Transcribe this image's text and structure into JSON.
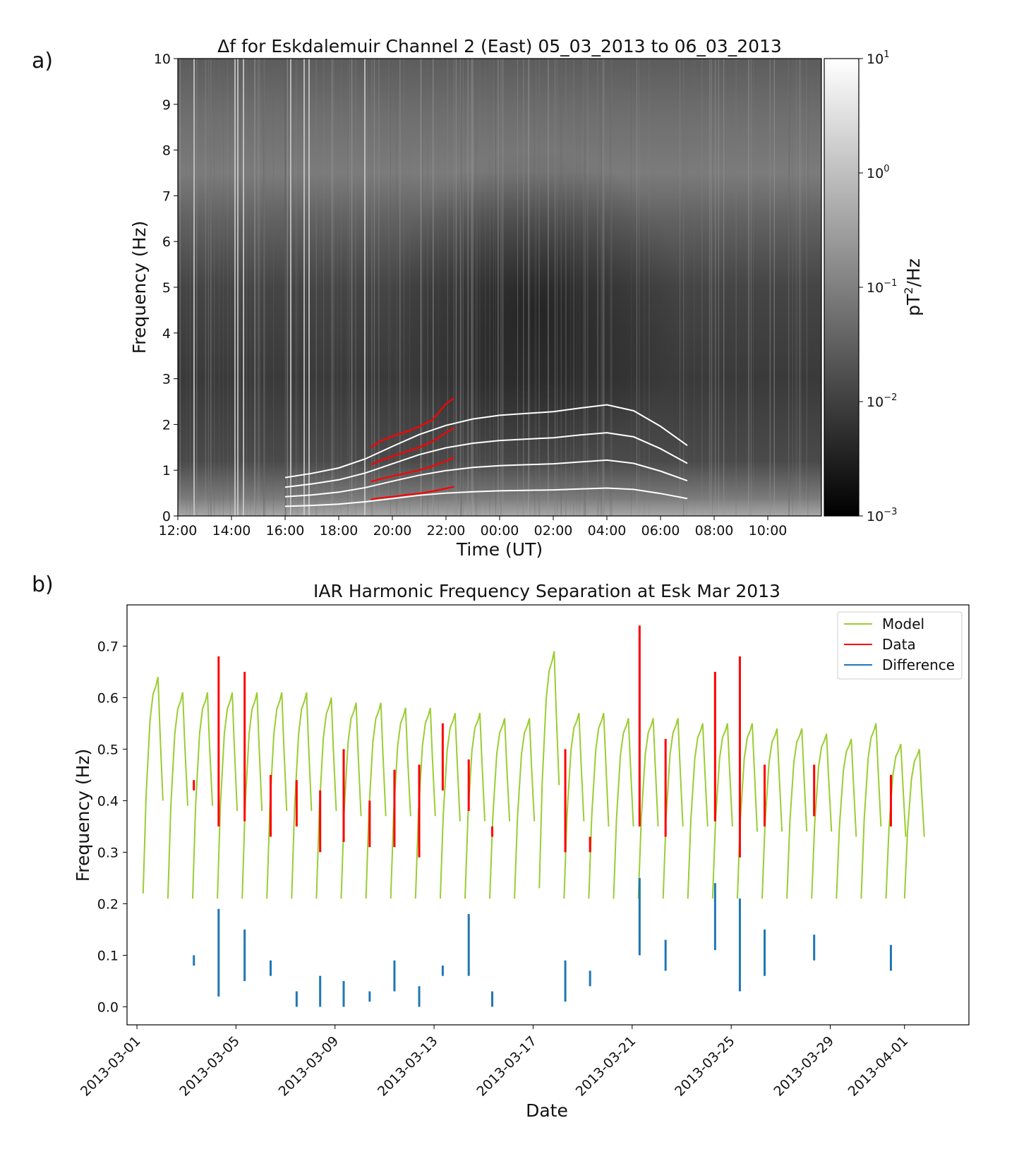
{
  "chart_data": [
    {
      "panel": "a)",
      "type": "heatmap",
      "title": "Δf for Eskdalemuir Channel 2 (East) 05_03_2013 to 06_03_2013",
      "xlabel": "Time (UT)",
      "ylabel": "Frequency (Hz)",
      "xlim": [
        12,
        36
      ],
      "ylim": [
        0,
        10
      ],
      "x_ticks": [
        {
          "value": 12,
          "label": "12:00"
        },
        {
          "value": 14,
          "label": "14:00"
        },
        {
          "value": 16,
          "label": "16:00"
        },
        {
          "value": 18,
          "label": "18:00"
        },
        {
          "value": 20,
          "label": "20:00"
        },
        {
          "value": 22,
          "label": "22:00"
        },
        {
          "value": 24,
          "label": "00:00"
        },
        {
          "value": 26,
          "label": "02:00"
        },
        {
          "value": 28,
          "label": "04:00"
        },
        {
          "value": 30,
          "label": "06:00"
        },
        {
          "value": 32,
          "label": "08:00"
        },
        {
          "value": 34,
          "label": "10:00"
        }
      ],
      "y_ticks": [
        0,
        1,
        2,
        3,
        4,
        5,
        6,
        7,
        8,
        9,
        10
      ],
      "colorbar": {
        "label": "pT²/Hz",
        "scale": "log",
        "range": [
          0.001,
          10
        ],
        "ticks": [
          {
            "value": -3,
            "base": "10",
            "exp": "−3"
          },
          {
            "value": -2,
            "base": "10",
            "exp": "−2"
          },
          {
            "value": -1,
            "base": "10",
            "exp": "−1"
          },
          {
            "value": 0,
            "base": "10",
            "exp": "0"
          },
          {
            "value": 1,
            "base": "10",
            "exp": "1"
          }
        ],
        "colormap": "gray"
      },
      "model_lines": {
        "color": "#ffffff",
        "x": [
          16,
          17,
          18,
          19,
          20,
          21,
          22,
          23,
          24,
          25,
          26,
          27,
          28,
          29,
          30,
          31
        ],
        "series": [
          {
            "values": [
              0.21,
              0.23,
              0.26,
              0.31,
              0.38,
              0.45,
              0.5,
              0.53,
              0.55,
              0.56,
              0.57,
              0.59,
              0.61,
              0.58,
              0.49,
              0.38
            ]
          },
          {
            "values": [
              0.42,
              0.46,
              0.52,
              0.62,
              0.76,
              0.89,
              0.99,
              1.06,
              1.1,
              1.12,
              1.14,
              1.18,
              1.22,
              1.15,
              0.98,
              0.77
            ]
          },
          {
            "values": [
              0.63,
              0.7,
              0.79,
              0.94,
              1.14,
              1.34,
              1.49,
              1.59,
              1.65,
              1.68,
              1.71,
              1.77,
              1.82,
              1.73,
              1.47,
              1.15
            ]
          },
          {
            "values": [
              0.84,
              0.93,
              1.05,
              1.25,
              1.52,
              1.78,
              1.98,
              2.12,
              2.2,
              2.24,
              2.28,
              2.36,
              2.43,
              2.3,
              1.96,
              1.54
            ]
          }
        ]
      },
      "data_lines": {
        "color": "#ff0000",
        "x": [
          19.2,
          19.5,
          20.0,
          20.5,
          21.0,
          21.5,
          22.0,
          22.3
        ],
        "series": [
          {
            "values": [
              0.36,
              0.39,
              0.42,
              0.46,
              0.49,
              0.54,
              0.6,
              0.64
            ]
          },
          {
            "values": [
              0.75,
              0.8,
              0.87,
              0.93,
              1.0,
              1.09,
              1.2,
              1.28
            ]
          },
          {
            "values": [
              1.12,
              1.2,
              1.3,
              1.4,
              1.5,
              1.63,
              1.82,
              1.93
            ]
          },
          {
            "values": [
              1.5,
              1.62,
              1.74,
              1.84,
              1.95,
              2.1,
              2.45,
              2.58
            ]
          }
        ]
      }
    },
    {
      "panel": "b)",
      "type": "line",
      "title": "IAR Harmonic Frequency Separation at Esk Mar 2013",
      "xlabel": "Date",
      "ylabel": "Frequency (Hz)",
      "xlim": [
        -0.4,
        33.6
      ],
      "ylim": [
        -0.035,
        0.78
      ],
      "x_axis": "days since 2013-03-01",
      "x_ticks": [
        {
          "value": 0,
          "label": "2013-03-01"
        },
        {
          "value": 4,
          "label": "2013-03-05"
        },
        {
          "value": 8,
          "label": "2013-03-09"
        },
        {
          "value": 12,
          "label": "2013-03-13"
        },
        {
          "value": 16,
          "label": "2013-03-17"
        },
        {
          "value": 20,
          "label": "2013-03-21"
        },
        {
          "value": 24,
          "label": "2013-03-25"
        },
        {
          "value": 28,
          "label": "2013-03-29"
        },
        {
          "value": 31,
          "label": "2013-04-01"
        }
      ],
      "y_ticks": [
        0.0,
        0.1,
        0.2,
        0.3,
        0.4,
        0.5,
        0.6,
        0.7
      ],
      "legend": {
        "position": "top-right",
        "entries": [
          {
            "label": "Model",
            "color": "#9acd32"
          },
          {
            "label": "Data",
            "color": "#ff0000"
          },
          {
            "label": "Difference",
            "color": "#1f77b4"
          }
        ]
      },
      "model_nights": [
        {
          "start": 0.25,
          "peak": 0.64,
          "min": 0.22,
          "end": 0.4
        },
        {
          "start": 1.25,
          "peak": 0.61,
          "min": 0.21,
          "end": 0.39
        },
        {
          "start": 2.25,
          "peak": 0.61,
          "min": 0.21,
          "end": 0.39
        },
        {
          "start": 3.25,
          "peak": 0.61,
          "min": 0.21,
          "end": 0.38
        },
        {
          "start": 4.25,
          "peak": 0.61,
          "min": 0.21,
          "end": 0.38
        },
        {
          "start": 5.25,
          "peak": 0.61,
          "min": 0.21,
          "end": 0.38
        },
        {
          "start": 6.25,
          "peak": 0.61,
          "min": 0.21,
          "end": 0.38
        },
        {
          "start": 7.25,
          "peak": 0.6,
          "min": 0.21,
          "end": 0.38
        },
        {
          "start": 8.25,
          "peak": 0.59,
          "min": 0.21,
          "end": 0.37
        },
        {
          "start": 9.25,
          "peak": 0.59,
          "min": 0.21,
          "end": 0.37
        },
        {
          "start": 10.25,
          "peak": 0.58,
          "min": 0.21,
          "end": 0.37
        },
        {
          "start": 11.25,
          "peak": 0.58,
          "min": 0.21,
          "end": 0.37
        },
        {
          "start": 12.25,
          "peak": 0.57,
          "min": 0.21,
          "end": 0.36
        },
        {
          "start": 13.25,
          "peak": 0.57,
          "min": 0.21,
          "end": 0.36
        },
        {
          "start": 14.25,
          "peak": 0.56,
          "min": 0.21,
          "end": 0.36
        },
        {
          "start": 15.25,
          "peak": 0.56,
          "min": 0.21,
          "end": 0.36
        },
        {
          "start": 16.25,
          "peak": 0.69,
          "min": 0.23,
          "end": 0.43
        },
        {
          "start": 17.25,
          "peak": 0.57,
          "min": 0.21,
          "end": 0.36
        },
        {
          "start": 18.25,
          "peak": 0.57,
          "min": 0.21,
          "end": 0.35
        },
        {
          "start": 19.25,
          "peak": 0.56,
          "min": 0.21,
          "end": 0.35
        },
        {
          "start": 20.25,
          "peak": 0.56,
          "min": 0.21,
          "end": 0.35
        },
        {
          "start": 21.25,
          "peak": 0.56,
          "min": 0.21,
          "end": 0.35
        },
        {
          "start": 22.25,
          "peak": 0.55,
          "min": 0.21,
          "end": 0.35
        },
        {
          "start": 23.25,
          "peak": 0.55,
          "min": 0.21,
          "end": 0.35
        },
        {
          "start": 24.25,
          "peak": 0.55,
          "min": 0.21,
          "end": 0.34
        },
        {
          "start": 25.25,
          "peak": 0.54,
          "min": 0.21,
          "end": 0.34
        },
        {
          "start": 26.25,
          "peak": 0.54,
          "min": 0.21,
          "end": 0.34
        },
        {
          "start": 27.25,
          "peak": 0.53,
          "min": 0.21,
          "end": 0.34
        },
        {
          "start": 28.25,
          "peak": 0.52,
          "min": 0.21,
          "end": 0.33
        },
        {
          "start": 29.25,
          "peak": 0.55,
          "min": 0.21,
          "end": 0.35
        },
        {
          "start": 30.25,
          "peak": 0.51,
          "min": 0.21,
          "end": 0.33
        },
        {
          "start": 31.0,
          "peak": 0.5,
          "min": 0.21,
          "end": 0.33
        }
      ],
      "data_segments": [
        {
          "x": 2.3,
          "y": [
            0.42,
            0.44
          ]
        },
        {
          "x": 3.3,
          "y": [
            0.35,
            0.68
          ]
        },
        {
          "x": 4.35,
          "y": [
            0.36,
            0.65
          ]
        },
        {
          "x": 5.4,
          "y": [
            0.33,
            0.45
          ]
        },
        {
          "x": 6.45,
          "y": [
            0.35,
            0.44
          ]
        },
        {
          "x": 7.4,
          "y": [
            0.3,
            0.42
          ]
        },
        {
          "x": 8.35,
          "y": [
            0.32,
            0.5
          ]
        },
        {
          "x": 9.4,
          "y": [
            0.31,
            0.4
          ]
        },
        {
          "x": 10.4,
          "y": [
            0.31,
            0.46
          ]
        },
        {
          "x": 11.4,
          "y": [
            0.29,
            0.47
          ]
        },
        {
          "x": 12.35,
          "y": [
            0.42,
            0.55
          ]
        },
        {
          "x": 13.4,
          "y": [
            0.38,
            0.48
          ]
        },
        {
          "x": 14.35,
          "y": [
            0.33,
            0.35
          ]
        },
        {
          "x": 17.3,
          "y": [
            0.3,
            0.5
          ]
        },
        {
          "x": 18.3,
          "y": [
            0.3,
            0.33
          ]
        },
        {
          "x": 20.3,
          "y": [
            0.35,
            0.74
          ]
        },
        {
          "x": 21.35,
          "y": [
            0.33,
            0.52
          ]
        },
        {
          "x": 23.35,
          "y": [
            0.36,
            0.65
          ]
        },
        {
          "x": 24.35,
          "y": [
            0.29,
            0.68
          ]
        },
        {
          "x": 25.35,
          "y": [
            0.35,
            0.47
          ]
        },
        {
          "x": 27.35,
          "y": [
            0.37,
            0.47
          ]
        },
        {
          "x": 30.45,
          "y": [
            0.35,
            0.45
          ]
        }
      ],
      "difference_segments": [
        {
          "x": 2.3,
          "y": [
            0.08,
            0.1
          ]
        },
        {
          "x": 3.3,
          "y": [
            0.02,
            0.19
          ]
        },
        {
          "x": 4.35,
          "y": [
            0.05,
            0.15
          ]
        },
        {
          "x": 5.4,
          "y": [
            0.06,
            0.09
          ]
        },
        {
          "x": 6.45,
          "y": [
            0.0,
            0.03
          ]
        },
        {
          "x": 7.4,
          "y": [
            0.0,
            0.06
          ]
        },
        {
          "x": 8.35,
          "y": [
            0.0,
            0.05
          ]
        },
        {
          "x": 9.4,
          "y": [
            0.01,
            0.03
          ]
        },
        {
          "x": 10.4,
          "y": [
            0.03,
            0.09
          ]
        },
        {
          "x": 11.4,
          "y": [
            0.0,
            0.04
          ]
        },
        {
          "x": 12.35,
          "y": [
            0.06,
            0.08
          ]
        },
        {
          "x": 13.4,
          "y": [
            0.06,
            0.18
          ]
        },
        {
          "x": 14.35,
          "y": [
            0.0,
            0.03
          ]
        },
        {
          "x": 17.3,
          "y": [
            0.01,
            0.09
          ]
        },
        {
          "x": 18.3,
          "y": [
            0.04,
            0.07
          ]
        },
        {
          "x": 20.3,
          "y": [
            0.1,
            0.25
          ]
        },
        {
          "x": 21.35,
          "y": [
            0.07,
            0.13
          ]
        },
        {
          "x": 23.35,
          "y": [
            0.11,
            0.24
          ]
        },
        {
          "x": 24.35,
          "y": [
            0.03,
            0.21
          ]
        },
        {
          "x": 25.35,
          "y": [
            0.06,
            0.15
          ]
        },
        {
          "x": 27.35,
          "y": [
            0.09,
            0.14
          ]
        },
        {
          "x": 30.45,
          "y": [
            0.07,
            0.12
          ]
        }
      ]
    }
  ]
}
